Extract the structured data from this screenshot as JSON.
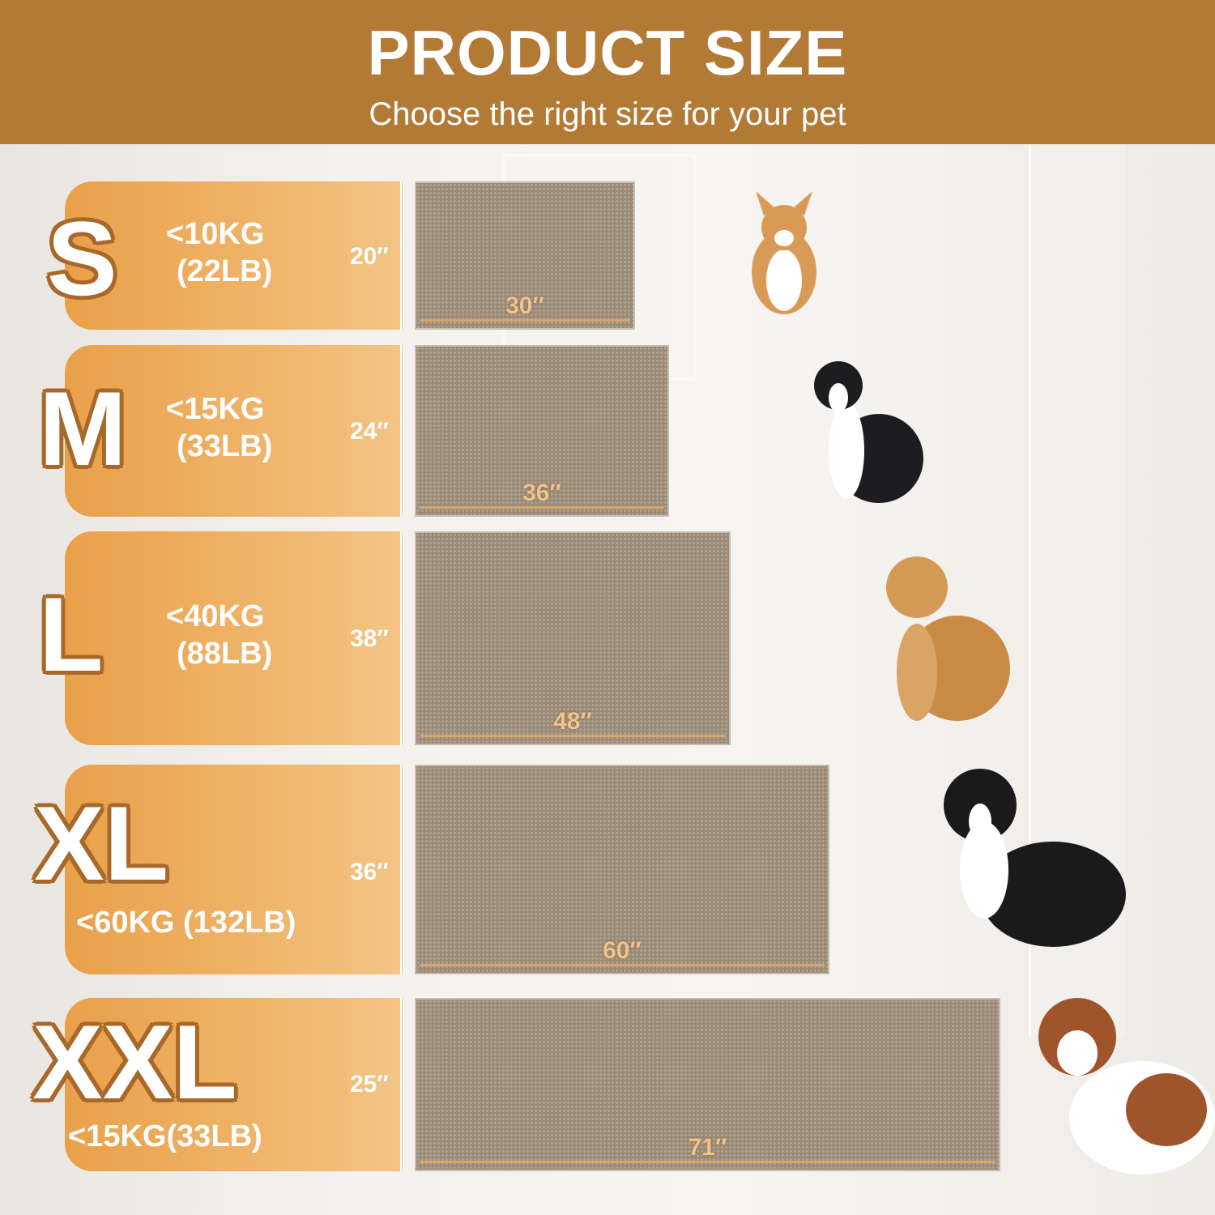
{
  "header": {
    "title": "PRODUCT SIZE",
    "subtitle": "Choose the right size for your pet"
  },
  "colors": {
    "header": "#b27a35",
    "panel": "#efb56a",
    "mat": "#9a8a78"
  },
  "sizes": [
    {
      "label": "S",
      "weight_kg": "<10KG",
      "weight_lb": "(22LB)",
      "height": "20″",
      "width": "30″",
      "dog": "corgi"
    },
    {
      "label": "M",
      "weight_kg": "<15KG",
      "weight_lb": "(33LB)",
      "height": "24″",
      "width": "36″",
      "dog": "border-collie"
    },
    {
      "label": "L",
      "weight_kg": "<40KG",
      "weight_lb": "(88LB)",
      "height": "38″",
      "width": "48″",
      "dog": "golden-retriever"
    },
    {
      "label": "XL",
      "weight": "<60KG (132LB)",
      "height": "36″",
      "width": "60″",
      "dog": "bernese-mountain-dog"
    },
    {
      "label": "XXL",
      "weight": "<15KG(33LB)",
      "height": "25″",
      "width": "71″",
      "dog": "saint-bernard"
    }
  ]
}
